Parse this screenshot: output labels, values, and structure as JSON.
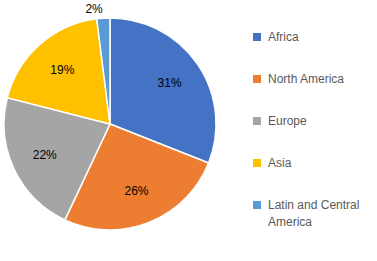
{
  "chart_data": {
    "type": "pie",
    "categories": [
      "Africa",
      "North America",
      "Europe",
      "Asia",
      "Latin and Central America"
    ],
    "values": [
      31,
      26,
      22,
      19,
      2
    ],
    "value_labels": [
      "31%",
      "26%",
      "22%",
      "19%",
      "2%"
    ],
    "colors": [
      "#4472c4",
      "#ed7d31",
      "#a5a5a5",
      "#ffc000",
      "#5b9bd5"
    ],
    "data_labels": true,
    "legend": "right"
  }
}
